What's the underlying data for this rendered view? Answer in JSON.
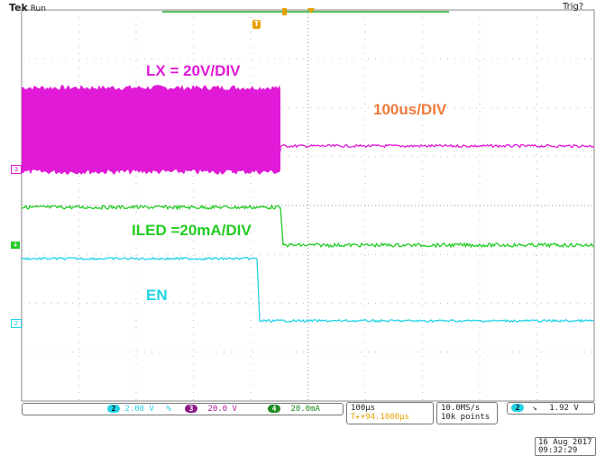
{
  "header": {
    "brand": "Tek",
    "run_state": "Run",
    "trigger_state": "Trig?",
    "trigger_marker": "T"
  },
  "annotations": {
    "lx": "LX = 20V/DIV",
    "timebase": "100us/DIV",
    "iled": "ILED =20mA/DIV",
    "en": "EN"
  },
  "channels": [
    {
      "num": "2",
      "name": "EN",
      "scale": "2.00 V",
      "color": "#22d3e6"
    },
    {
      "num": "3",
      "name": "LX",
      "scale": "20.0 V",
      "color": "#e01ad6"
    },
    {
      "num": "4",
      "name": "ILED",
      "scale": "20.0mA",
      "color": "#22cc22"
    }
  ],
  "status": {
    "bandwidth_symbol": "%",
    "horizontal_scale": "100µs",
    "trigger_position": "T▸▾94.1000µs",
    "sample_rate": "10.0MS/s",
    "record_length": "10k points",
    "trigger_source": "2",
    "trigger_slope": "↘",
    "trigger_level": "1.92 V",
    "date": "16 Aug 2017",
    "time": "09:32:29"
  },
  "colors": {
    "lx": "#e01ad6",
    "iled": "#22cc22",
    "en": "#22d3e6",
    "lx_label": "#e01ad6",
    "timebase_label": "#f07a3c",
    "trigger": "#e6a000",
    "grid": "#bfbfbf"
  }
}
